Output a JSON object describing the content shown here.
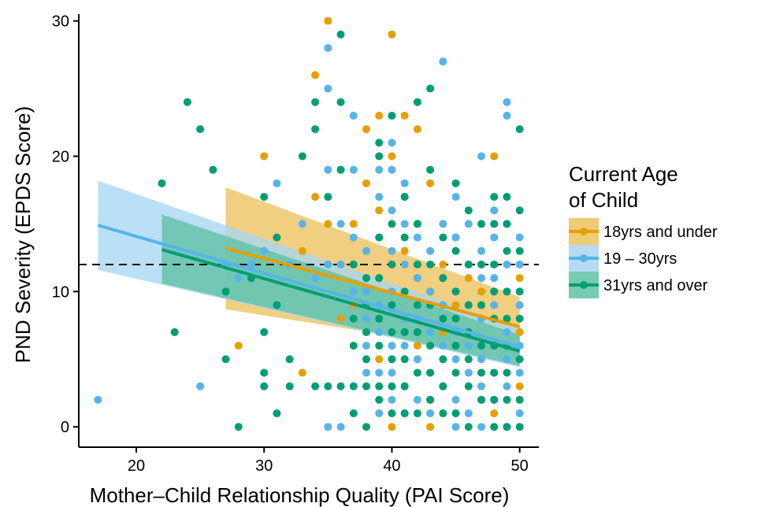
{
  "chart_data": {
    "type": "scatter",
    "title": "",
    "xlabel": "Mother–Child Relationship Quality (PAI Score)",
    "ylabel": "PND Severity (EPDS Score)",
    "xlim": [
      15.5,
      51.5
    ],
    "ylim": [
      -1.5,
      30.5
    ],
    "xticks": [
      20,
      30,
      40,
      50
    ],
    "yticks": [
      0,
      10,
      20,
      30
    ],
    "xtick_labels": [
      "20",
      "30",
      "40",
      "50"
    ],
    "ytick_labels": [
      "0",
      "10",
      "20",
      "30"
    ],
    "grid": false,
    "reference_line": {
      "y": 12,
      "style": "dashed"
    },
    "legend": {
      "title_lines": [
        "Current Age",
        "of Child"
      ],
      "position": "right"
    },
    "series": [
      {
        "name": "18yrs and under",
        "color": "#E69F00",
        "fill": "#EDC25E",
        "fit": {
          "x0": 27,
          "x1": 50,
          "y0": 13.2,
          "y1": 7.4
        },
        "band": {
          "x": [
            27,
            50
          ],
          "upper": [
            17.7,
            9.6
          ],
          "lower": [
            8.7,
            5.2
          ]
        },
        "points": [
          [
            28,
            6
          ],
          [
            30,
            20
          ],
          [
            31,
            14
          ],
          [
            33,
            13
          ],
          [
            33,
            4
          ],
          [
            34,
            26
          ],
          [
            34,
            17
          ],
          [
            35,
            30
          ],
          [
            35,
            15
          ],
          [
            36,
            12
          ],
          [
            36,
            8
          ],
          [
            37,
            15
          ],
          [
            37,
            9
          ],
          [
            38,
            22
          ],
          [
            38,
            18
          ],
          [
            38,
            13
          ],
          [
            39,
            23
          ],
          [
            39,
            16
          ],
          [
            39,
            11
          ],
          [
            39,
            5
          ],
          [
            40,
            29
          ],
          [
            40,
            20
          ],
          [
            40,
            12
          ],
          [
            40,
            9
          ],
          [
            40,
            0
          ],
          [
            41,
            23
          ],
          [
            41,
            17
          ],
          [
            41,
            13
          ],
          [
            41,
            8
          ],
          [
            42,
            22
          ],
          [
            42,
            15
          ],
          [
            42,
            11
          ],
          [
            42,
            6
          ],
          [
            43,
            18
          ],
          [
            43,
            10
          ],
          [
            43,
            2
          ],
          [
            43,
            0
          ],
          [
            44,
            12
          ],
          [
            44,
            7
          ],
          [
            44,
            3
          ],
          [
            45,
            14
          ],
          [
            45,
            9
          ],
          [
            46,
            11
          ],
          [
            46,
            4
          ],
          [
            47,
            10
          ],
          [
            47,
            2
          ],
          [
            48,
            20
          ],
          [
            48,
            8
          ],
          [
            48,
            1
          ],
          [
            49,
            6
          ],
          [
            49,
            0
          ],
          [
            50,
            11
          ],
          [
            50,
            7
          ],
          [
            50,
            3
          ]
        ]
      },
      {
        "name": "19 – 30yrs",
        "color": "#56B4E9",
        "fill": "#A8D6F1",
        "fit": {
          "x0": 17,
          "x1": 50,
          "y0": 14.9,
          "y1": 5.9
        },
        "band": {
          "x": [
            17,
            50
          ],
          "upper": [
            18.2,
            7.3
          ],
          "lower": [
            11.6,
            4.4
          ]
        },
        "points": [
          [
            17,
            2
          ],
          [
            25,
            3
          ],
          [
            27,
            12
          ],
          [
            28,
            11
          ],
          [
            29,
            12
          ],
          [
            30,
            13
          ],
          [
            31,
            18
          ],
          [
            32,
            12
          ],
          [
            33,
            15
          ],
          [
            34,
            11
          ],
          [
            35,
            28
          ],
          [
            35,
            25
          ],
          [
            35,
            19
          ],
          [
            35,
            12
          ],
          [
            35,
            0
          ],
          [
            36,
            19
          ],
          [
            36,
            15
          ],
          [
            36,
            12
          ],
          [
            36,
            0
          ],
          [
            37,
            23
          ],
          [
            37,
            19
          ],
          [
            37,
            14
          ],
          [
            37,
            12
          ],
          [
            37,
            10
          ],
          [
            37,
            3
          ],
          [
            38,
            13
          ],
          [
            38,
            10
          ],
          [
            38,
            8
          ],
          [
            38,
            6
          ],
          [
            38,
            4
          ],
          [
            39,
            19
          ],
          [
            39,
            17
          ],
          [
            39,
            14
          ],
          [
            39,
            9
          ],
          [
            39,
            7
          ],
          [
            39,
            4
          ],
          [
            39,
            1
          ],
          [
            40,
            21
          ],
          [
            40,
            19
          ],
          [
            40,
            16
          ],
          [
            40,
            13
          ],
          [
            40,
            10
          ],
          [
            40,
            6
          ],
          [
            40,
            4
          ],
          [
            40,
            2
          ],
          [
            41,
            18
          ],
          [
            41,
            15
          ],
          [
            41,
            12
          ],
          [
            41,
            8
          ],
          [
            41,
            6
          ],
          [
            41,
            3
          ],
          [
            41,
            1
          ],
          [
            42,
            14
          ],
          [
            42,
            11
          ],
          [
            42,
            8
          ],
          [
            42,
            5
          ],
          [
            42,
            2
          ],
          [
            43,
            13
          ],
          [
            43,
            10
          ],
          [
            43,
            7
          ],
          [
            43,
            4
          ],
          [
            43,
            1
          ],
          [
            44,
            27
          ],
          [
            44,
            15
          ],
          [
            44,
            11
          ],
          [
            44,
            9
          ],
          [
            44,
            6
          ],
          [
            44,
            3
          ],
          [
            45,
            17
          ],
          [
            45,
            14
          ],
          [
            45,
            10
          ],
          [
            45,
            7
          ],
          [
            45,
            5
          ],
          [
            45,
            2
          ],
          [
            45,
            0
          ],
          [
            46,
            15
          ],
          [
            46,
            12
          ],
          [
            46,
            9
          ],
          [
            46,
            6
          ],
          [
            46,
            4
          ],
          [
            46,
            1
          ],
          [
            47,
            20
          ],
          [
            47,
            13
          ],
          [
            47,
            11
          ],
          [
            47,
            8
          ],
          [
            47,
            5
          ],
          [
            47,
            3
          ],
          [
            47,
            0
          ],
          [
            48,
            16
          ],
          [
            48,
            14
          ],
          [
            48,
            11
          ],
          [
            48,
            9
          ],
          [
            48,
            6
          ],
          [
            48,
            4
          ],
          [
            48,
            2
          ],
          [
            49,
            24
          ],
          [
            49,
            23
          ],
          [
            49,
            15
          ],
          [
            49,
            12
          ],
          [
            49,
            10
          ],
          [
            49,
            7
          ],
          [
            49,
            5
          ],
          [
            49,
            3
          ],
          [
            49,
            0
          ],
          [
            50,
            14
          ],
          [
            50,
            12
          ],
          [
            50,
            9
          ],
          [
            50,
            6
          ],
          [
            50,
            4
          ],
          [
            50,
            1
          ]
        ]
      },
      {
        "name": "31yrs and over",
        "color": "#009E73",
        "fill": "#5EC2A3",
        "fit": {
          "x0": 22,
          "x1": 50,
          "y0": 13.1,
          "y1": 5.6
        },
        "band": {
          "x": [
            22,
            50
          ],
          "upper": [
            15.7,
            6.8
          ],
          "lower": [
            10.6,
            4.5
          ]
        },
        "points": [
          [
            22,
            18
          ],
          [
            23,
            7
          ],
          [
            24,
            24
          ],
          [
            25,
            22
          ],
          [
            26,
            19
          ],
          [
            27,
            10
          ],
          [
            27,
            5
          ],
          [
            28,
            0
          ],
          [
            29,
            11
          ],
          [
            30,
            17
          ],
          [
            30,
            7
          ],
          [
            30,
            4
          ],
          [
            30,
            3
          ],
          [
            31,
            14
          ],
          [
            31,
            9
          ],
          [
            31,
            1
          ],
          [
            32,
            5
          ],
          [
            32,
            3
          ],
          [
            33,
            20
          ],
          [
            34,
            24
          ],
          [
            34,
            22
          ],
          [
            34,
            3
          ],
          [
            35,
            17
          ],
          [
            35,
            3
          ],
          [
            36,
            29
          ],
          [
            36,
            24
          ],
          [
            36,
            19
          ],
          [
            36,
            3
          ],
          [
            37,
            12
          ],
          [
            37,
            8
          ],
          [
            37,
            6
          ],
          [
            37,
            3
          ],
          [
            37,
            1
          ],
          [
            38,
            11
          ],
          [
            38,
            9
          ],
          [
            38,
            7
          ],
          [
            38,
            5
          ],
          [
            38,
            3
          ],
          [
            38,
            0
          ],
          [
            39,
            21
          ],
          [
            39,
            20
          ],
          [
            39,
            14
          ],
          [
            39,
            11
          ],
          [
            39,
            8
          ],
          [
            39,
            6
          ],
          [
            39,
            3
          ],
          [
            39,
            2
          ],
          [
            40,
            23
          ],
          [
            40,
            15
          ],
          [
            40,
            12
          ],
          [
            40,
            9
          ],
          [
            40,
            7
          ],
          [
            40,
            5
          ],
          [
            40,
            3
          ],
          [
            40,
            1
          ],
          [
            41,
            17
          ],
          [
            41,
            14
          ],
          [
            41,
            10
          ],
          [
            41,
            7
          ],
          [
            41,
            5
          ],
          [
            41,
            3
          ],
          [
            41,
            1
          ],
          [
            42,
            24
          ],
          [
            42,
            15
          ],
          [
            42,
            12
          ],
          [
            42,
            9
          ],
          [
            42,
            7
          ],
          [
            42,
            4
          ],
          [
            42,
            1
          ],
          [
            43,
            25
          ],
          [
            43,
            19
          ],
          [
            43,
            12
          ],
          [
            43,
            9
          ],
          [
            43,
            6
          ],
          [
            43,
            4
          ],
          [
            43,
            2
          ],
          [
            44,
            14
          ],
          [
            44,
            11
          ],
          [
            44,
            8
          ],
          [
            44,
            5
          ],
          [
            44,
            3
          ],
          [
            44,
            1
          ],
          [
            45,
            18
          ],
          [
            45,
            13
          ],
          [
            45,
            10
          ],
          [
            45,
            8
          ],
          [
            45,
            6
          ],
          [
            45,
            4
          ],
          [
            45,
            1
          ],
          [
            46,
            16
          ],
          [
            46,
            12
          ],
          [
            46,
            9
          ],
          [
            46,
            7
          ],
          [
            46,
            5
          ],
          [
            46,
            3
          ],
          [
            46,
            0
          ],
          [
            47,
            15
          ],
          [
            47,
            12
          ],
          [
            47,
            9
          ],
          [
            47,
            6
          ],
          [
            47,
            4
          ],
          [
            47,
            2
          ],
          [
            48,
            17
          ],
          [
            48,
            15
          ],
          [
            48,
            12
          ],
          [
            48,
            10
          ],
          [
            48,
            8
          ],
          [
            48,
            6
          ],
          [
            48,
            4
          ],
          [
            48,
            2
          ],
          [
            48,
            0
          ],
          [
            49,
            17
          ],
          [
            49,
            15
          ],
          [
            49,
            13
          ],
          [
            49,
            10
          ],
          [
            49,
            8
          ],
          [
            49,
            6
          ],
          [
            49,
            4
          ],
          [
            49,
            2
          ],
          [
            49,
            0
          ],
          [
            50,
            22
          ],
          [
            50,
            16
          ],
          [
            50,
            13
          ],
          [
            50,
            10
          ],
          [
            50,
            8
          ],
          [
            50,
            5
          ],
          [
            50,
            2
          ],
          [
            50,
            0
          ]
        ]
      }
    ]
  }
}
